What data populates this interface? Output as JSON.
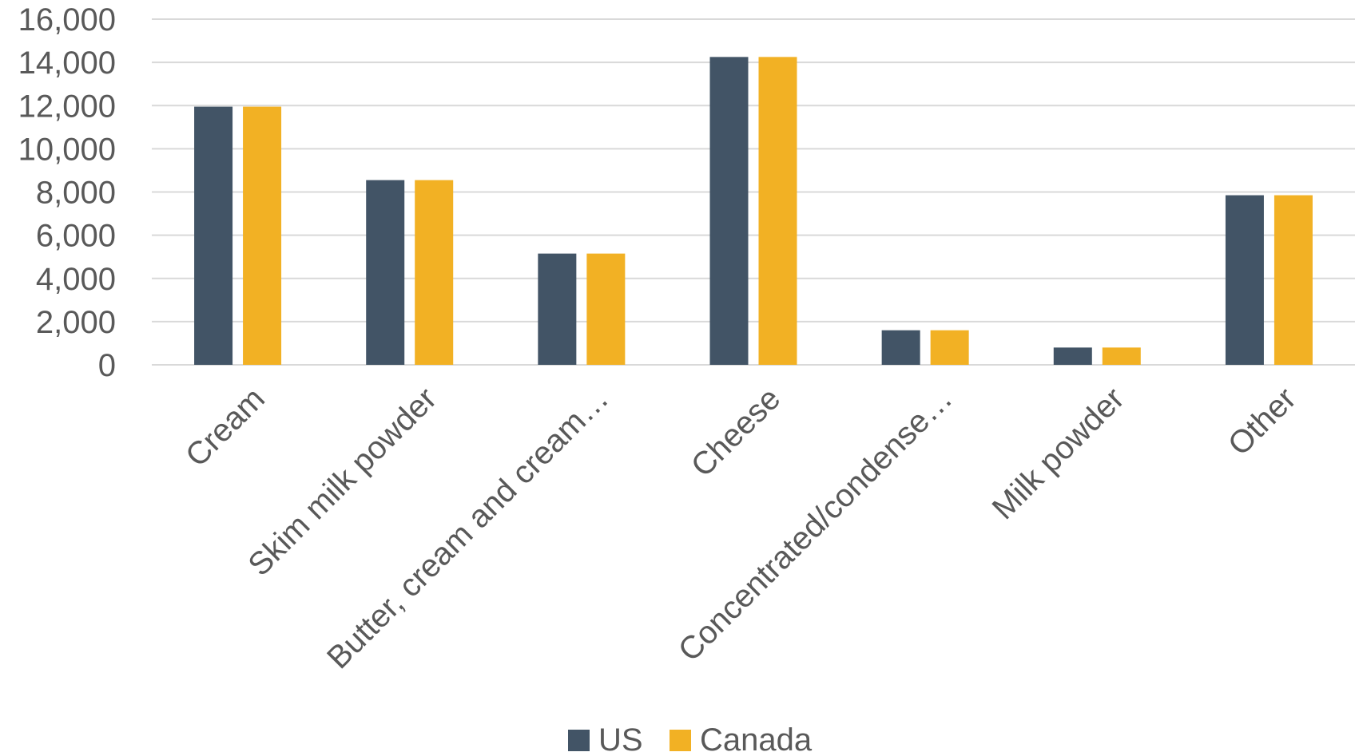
{
  "chart_data": {
    "type": "bar",
    "categories": [
      "Cream",
      "Skim milk powder",
      "Butter, cream and cream…",
      "Cheese",
      "Concentrated/condense…",
      "Milk powder",
      "Other"
    ],
    "series": [
      {
        "name": "US",
        "values": [
          11950,
          8550,
          5150,
          14250,
          1600,
          800,
          7850
        ]
      },
      {
        "name": "Canada",
        "values": [
          11950,
          8550,
          5150,
          14250,
          1600,
          800,
          7850
        ]
      }
    ],
    "yticks": [
      "0",
      "2,000",
      "4,000",
      "6,000",
      "8,000",
      "10,000",
      "12,000",
      "14,000",
      "16,000"
    ],
    "ylim": [
      0,
      16000
    ],
    "grid": true,
    "legend_position": "bottom-center",
    "title": "",
    "xlabel": "",
    "ylabel": ""
  },
  "colors": {
    "us": "#425466",
    "canada": "#f2b124",
    "grid": "#d9d9d9",
    "text": "#595959"
  }
}
